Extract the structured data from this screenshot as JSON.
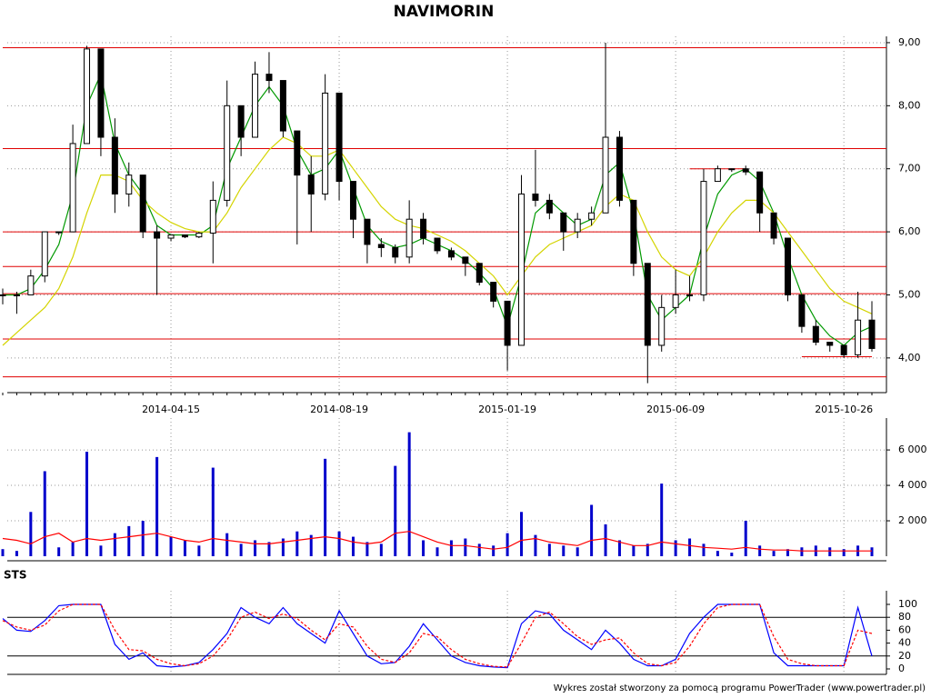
{
  "chart_data": [
    {
      "type": "candlestick",
      "title": "NAVIMORIN",
      "categories": [
        null,
        null,
        null,
        null,
        null,
        null,
        null,
        null,
        null,
        null,
        null,
        null,
        "2014-04-15",
        null,
        null,
        null,
        null,
        null,
        null,
        null,
        null,
        null,
        null,
        null,
        "2014-08-19",
        null,
        null,
        null,
        null,
        null,
        null,
        null,
        null,
        null,
        null,
        null,
        "2015-01-19",
        null,
        null,
        null,
        null,
        null,
        null,
        null,
        null,
        null,
        null,
        null,
        "2015-06-09",
        null,
        null,
        null,
        null,
        null,
        null,
        null,
        null,
        null,
        null,
        null,
        "2015-10-26",
        null,
        null
      ],
      "open": [
        5.0,
        5.0,
        5.0,
        5.3,
        6.0,
        6.0,
        7.4,
        8.9,
        7.5,
        6.6,
        6.9,
        6.0,
        5.9,
        5.95,
        5.92,
        5.98,
        6.5,
        8.0,
        7.5,
        8.5,
        8.4,
        7.6,
        6.9,
        6.6,
        8.2,
        6.8,
        6.2,
        5.8,
        5.75,
        5.6,
        6.2,
        5.9,
        5.7,
        5.6,
        5.5,
        5.2,
        4.9,
        4.2,
        6.6,
        6.5,
        6.3,
        6.0,
        6.2,
        6.3,
        7.5,
        6.5,
        5.5,
        4.2,
        4.8,
        5.0,
        5.0,
        6.8,
        7.0,
        7.0,
        6.95,
        6.3,
        5.9,
        5.0,
        4.5,
        4.25,
        4.2,
        4.05,
        4.6
      ],
      "high": [
        5.1,
        5.05,
        5.4,
        6.0,
        6.0,
        7.7,
        8.95,
        8.9,
        7.8,
        7.1,
        6.9,
        6.1,
        5.95,
        5.95,
        6.0,
        6.8,
        8.4,
        8.0,
        8.7,
        8.85,
        8.4,
        7.6,
        7.2,
        8.5,
        8.2,
        6.8,
        6.2,
        5.9,
        5.8,
        6.5,
        6.3,
        5.9,
        5.75,
        5.6,
        5.5,
        5.2,
        4.9,
        6.9,
        7.3,
        6.6,
        6.3,
        6.3,
        6.4,
        9.0,
        7.6,
        6.5,
        5.5,
        5.0,
        5.4,
        5.3,
        7.0,
        7.05,
        7.0,
        7.05,
        6.95,
        6.3,
        5.9,
        5.0,
        4.6,
        4.25,
        4.2,
        5.05,
        4.9
      ],
      "low": [
        4.85,
        4.7,
        5.0,
        5.2,
        5.95,
        6.0,
        7.4,
        7.2,
        6.3,
        6.4,
        5.9,
        5.0,
        5.85,
        5.9,
        5.9,
        5.5,
        6.4,
        7.2,
        7.5,
        8.2,
        7.5,
        5.8,
        6.0,
        6.5,
        6.5,
        5.9,
        5.5,
        5.6,
        5.5,
        5.5,
        5.8,
        5.65,
        5.55,
        5.3,
        5.15,
        4.8,
        3.8,
        4.2,
        6.4,
        6.2,
        5.7,
        5.9,
        6.1,
        6.3,
        6.4,
        5.3,
        3.6,
        4.1,
        4.7,
        4.9,
        4.9,
        6.8,
        6.95,
        6.9,
        6.0,
        5.8,
        4.9,
        4.4,
        4.2,
        4.1,
        4.0,
        4.0,
        4.1
      ],
      "close": [
        5.0,
        5.0,
        5.3,
        6.0,
        6.0,
        7.4,
        8.9,
        7.5,
        6.6,
        6.9,
        6.0,
        5.9,
        5.95,
        5.92,
        5.98,
        6.5,
        8.0,
        7.5,
        8.5,
        8.4,
        7.6,
        6.9,
        6.6,
        8.2,
        6.8,
        6.2,
        5.8,
        5.75,
        5.6,
        6.2,
        5.9,
        5.7,
        5.6,
        5.5,
        5.2,
        4.9,
        4.2,
        6.6,
        6.5,
        6.3,
        6.0,
        6.2,
        6.3,
        7.5,
        6.5,
        5.5,
        4.2,
        4.8,
        5.0,
        5.0,
        6.8,
        7.0,
        7.0,
        6.95,
        6.3,
        5.9,
        5.0,
        4.5,
        4.25,
        4.2,
        4.05,
        4.6,
        4.15
      ],
      "up_color": "#ffffff",
      "down_color": "#000000",
      "series": [
        {
          "color": "#009900",
          "values": [
            5.0,
            5.0,
            5.1,
            5.4,
            5.8,
            6.6,
            8.0,
            8.5,
            7.4,
            6.9,
            6.6,
            6.1,
            5.95,
            5.95,
            5.95,
            6.1,
            7.0,
            7.5,
            8.0,
            8.3,
            8.0,
            7.3,
            6.9,
            7.0,
            7.3,
            6.7,
            6.1,
            5.85,
            5.75,
            5.8,
            5.9,
            5.8,
            5.7,
            5.55,
            5.35,
            5.1,
            4.5,
            5.3,
            6.3,
            6.5,
            6.3,
            6.1,
            6.2,
            6.9,
            7.1,
            6.3,
            5.0,
            4.6,
            4.8,
            5.0,
            5.9,
            6.6,
            6.9,
            7.0,
            6.8,
            6.3,
            5.6,
            5.0,
            4.6,
            4.35,
            4.2,
            4.4,
            4.5
          ]
        },
        {
          "color": "#d4d400",
          "values": [
            4.2,
            4.4,
            4.6,
            4.8,
            5.1,
            5.6,
            6.3,
            6.9,
            6.9,
            6.8,
            6.5,
            6.3,
            6.15,
            6.05,
            6.0,
            6.0,
            6.3,
            6.7,
            7.0,
            7.3,
            7.5,
            7.4,
            7.2,
            7.2,
            7.3,
            7.0,
            6.7,
            6.4,
            6.2,
            6.1,
            6.05,
            5.95,
            5.85,
            5.7,
            5.5,
            5.3,
            5.0,
            5.3,
            5.6,
            5.8,
            5.9,
            6.0,
            6.1,
            6.4,
            6.6,
            6.5,
            6.0,
            5.6,
            5.4,
            5.3,
            5.6,
            6.0,
            6.3,
            6.5,
            6.5,
            6.3,
            6.0,
            5.7,
            5.4,
            5.1,
            4.9,
            4.8,
            4.7
          ]
        }
      ],
      "levels": [
        8.92,
        7.32,
        6.0,
        5.45,
        5.02,
        4.3,
        3.7
      ],
      "segments": [
        {
          "value": 7.0,
          "from": 49,
          "to": 53
        },
        {
          "value": 4.02,
          "from": 57,
          "to": 62
        }
      ],
      "level_color": "#e00000",
      "ylim": [
        3.45,
        9.1
      ],
      "yticks": [
        {
          "value": 4,
          "label": "4,00"
        },
        {
          "value": 5,
          "label": "5,00"
        },
        {
          "value": 6,
          "label": "6,00"
        },
        {
          "value": 7,
          "label": "7,00"
        },
        {
          "value": 8,
          "label": "8,00"
        },
        {
          "value": 9,
          "label": "9,00"
        }
      ],
      "grid": true
    },
    {
      "type": "bar",
      "values": [
        400,
        300,
        2500,
        4800,
        500,
        800,
        5900,
        600,
        1300,
        1700,
        2000,
        5600,
        1100,
        900,
        600,
        5000,
        1300,
        700,
        900,
        800,
        1000,
        1400,
        1200,
        5500,
        1400,
        1100,
        800,
        700,
        5100,
        7000,
        900,
        500,
        900,
        1000,
        700,
        600,
        1300,
        2500,
        1200,
        700,
        600,
        500,
        2900,
        1800,
        900,
        600,
        700,
        4100,
        900,
        1000,
        700,
        300,
        200,
        2000,
        600,
        300,
        400,
        500,
        600,
        500,
        400,
        600,
        500
      ],
      "color": "#0000cc",
      "line": {
        "color": "#ff0000",
        "values": [
          1000,
          900,
          700,
          1100,
          1300,
          800,
          1000,
          900,
          1000,
          1100,
          1200,
          1300,
          1100,
          900,
          800,
          1000,
          900,
          800,
          700,
          700,
          800,
          900,
          1000,
          1100,
          1000,
          800,
          700,
          800,
          1300,
          1400,
          1100,
          800,
          600,
          600,
          500,
          400,
          500,
          900,
          1000,
          800,
          700,
          600,
          900,
          1000,
          800,
          600,
          600,
          800,
          700,
          600,
          500,
          450,
          400,
          500,
          400,
          350,
          350,
          300,
          300,
          300,
          300,
          300,
          300
        ]
      },
      "ylim": [
        0,
        7800
      ],
      "yticks": [
        {
          "value": 2000,
          "label": "2 000"
        },
        {
          "value": 4000,
          "label": "4 000"
        },
        {
          "value": 6000,
          "label": "6 000"
        }
      ],
      "grid": true
    },
    {
      "type": "line",
      "title": "STS",
      "series": [
        {
          "color": "#0000ff",
          "values": [
            78,
            60,
            58,
            75,
            98,
            100,
            100,
            100,
            38,
            15,
            25,
            5,
            3,
            5,
            10,
            30,
            55,
            95,
            80,
            70,
            95,
            70,
            55,
            40,
            90,
            55,
            20,
            8,
            10,
            35,
            70,
            45,
            20,
            10,
            5,
            3,
            2,
            70,
            90,
            85,
            60,
            45,
            30,
            60,
            40,
            15,
            5,
            5,
            15,
            55,
            80,
            100,
            100,
            100,
            100,
            25,
            5,
            5,
            5,
            5,
            5,
            95,
            20
          ]
        },
        {
          "color": "#ff0000",
          "dashed": true,
          "values": [
            75,
            65,
            60,
            68,
            90,
            100,
            100,
            100,
            60,
            30,
            28,
            15,
            8,
            5,
            8,
            20,
            45,
            80,
            88,
            78,
            85,
            78,
            60,
            45,
            70,
            65,
            35,
            15,
            10,
            25,
            55,
            50,
            30,
            15,
            8,
            4,
            3,
            40,
            80,
            88,
            70,
            50,
            38,
            45,
            48,
            25,
            8,
            5,
            10,
            35,
            70,
            95,
            100,
            100,
            100,
            50,
            15,
            8,
            5,
            5,
            5,
            60,
            55
          ]
        }
      ],
      "levels": [
        20,
        80
      ],
      "ylim": [
        0,
        100
      ],
      "yticks": [
        0,
        20,
        40,
        60,
        80,
        100
      ],
      "grid": true
    }
  ],
  "footer": "Wykres został stworzony za pomocą programu PowerTrader (www.powertrader.pl)"
}
